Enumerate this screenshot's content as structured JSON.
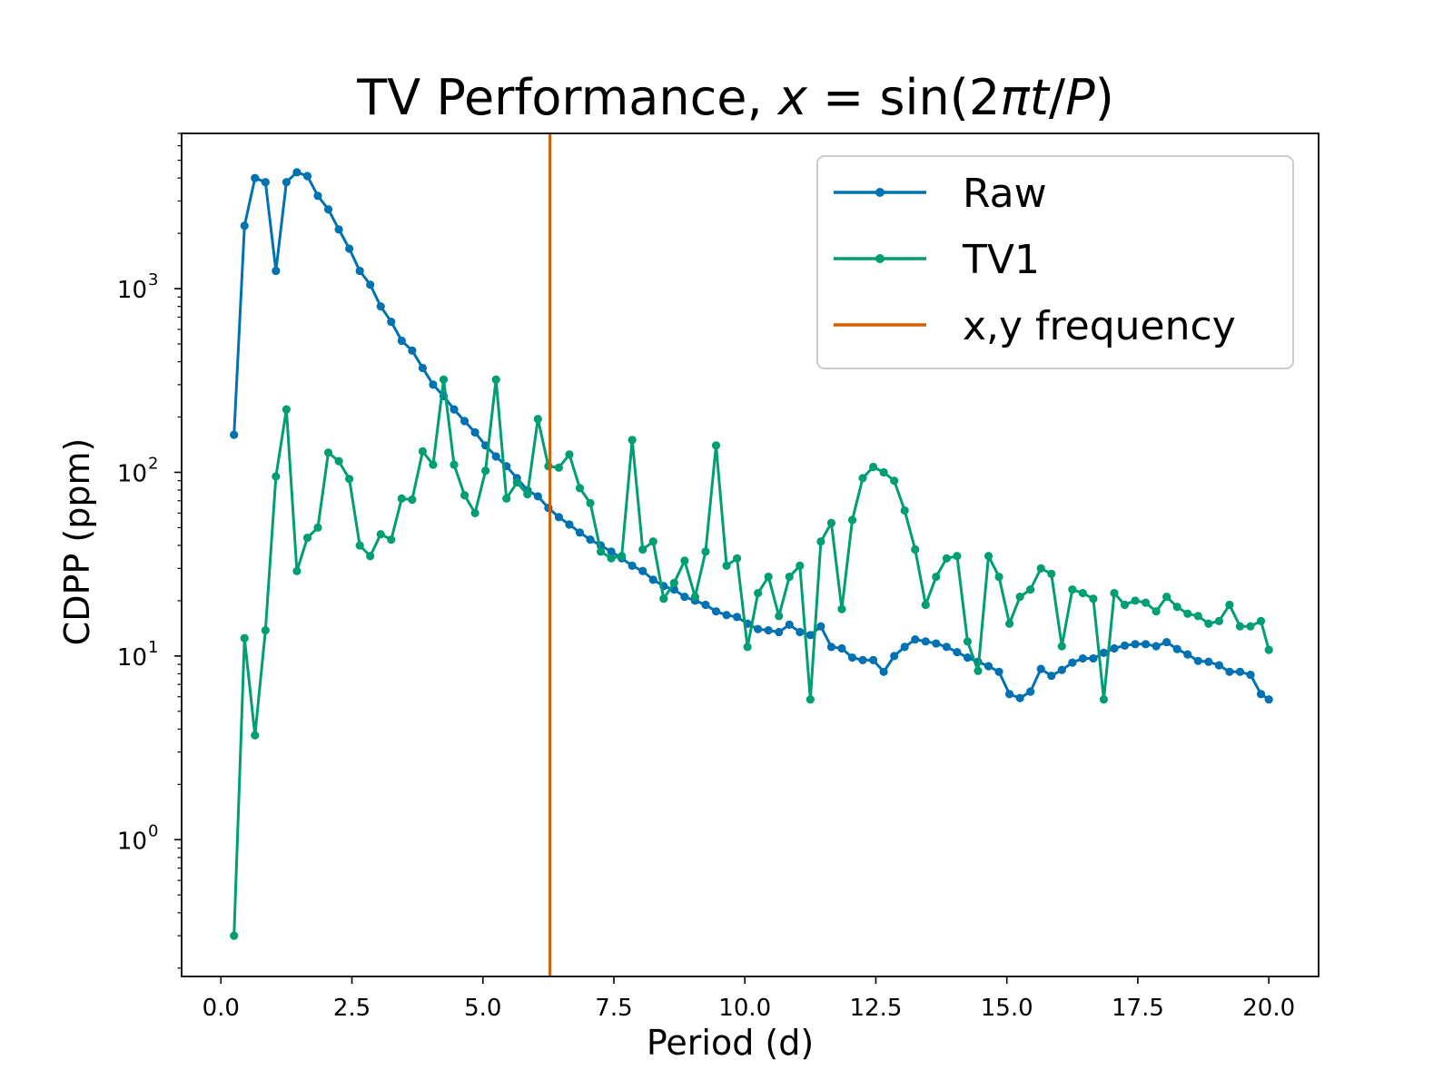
{
  "chart_data": {
    "type": "line",
    "title": {
      "prefix": "TV Performance, ",
      "var_x": "x",
      "equals": " = ",
      "func": "sin(2",
      "pi": "π",
      "var_t": "t",
      "slash": "/",
      "var_p": "P",
      "close": ")"
    },
    "xlabel": "Period (d)",
    "ylabel": "CDPP (ppm)",
    "xlim": [
      -0.75,
      20.95
    ],
    "ylim": [
      0.18,
      7000
    ],
    "yscale": "log",
    "xticks": [
      0.0,
      2.5,
      5.0,
      7.5,
      10.0,
      12.5,
      15.0,
      17.5,
      20.0
    ],
    "xtick_labels": [
      "0.0",
      "2.5",
      "5.0",
      "7.5",
      "10.0",
      "12.5",
      "15.0",
      "17.5",
      "20.0"
    ],
    "yticks": [
      1,
      10,
      100,
      1000
    ],
    "ytick_labels": [
      {
        "base": "10",
        "exp": "0"
      },
      {
        "base": "10",
        "exp": "1"
      },
      {
        "base": "10",
        "exp": "2"
      },
      {
        "base": "10",
        "exp": "3"
      }
    ],
    "grid": false,
    "legend_position": "upper-right",
    "vline": {
      "name": "x,y frequency",
      "x": 6.28,
      "color": "#d55e00"
    },
    "series": [
      {
        "name": "Raw",
        "color": "#0072b2",
        "x": [
          0.25,
          0.45,
          0.65,
          0.85,
          1.05,
          1.25,
          1.45,
          1.65,
          1.85,
          2.05,
          2.25,
          2.45,
          2.65,
          2.85,
          3.05,
          3.25,
          3.45,
          3.65,
          3.85,
          4.05,
          4.25,
          4.45,
          4.65,
          4.85,
          5.05,
          5.25,
          5.45,
          5.65,
          5.85,
          6.05,
          6.25,
          6.45,
          6.65,
          6.85,
          7.05,
          7.25,
          7.45,
          7.65,
          7.85,
          8.05,
          8.25,
          8.45,
          8.65,
          8.85,
          9.05,
          9.25,
          9.45,
          9.65,
          9.85,
          10.05,
          10.25,
          10.45,
          10.65,
          10.85,
          11.05,
          11.25,
          11.45,
          11.65,
          11.85,
          12.05,
          12.25,
          12.45,
          12.65,
          12.85,
          13.05,
          13.25,
          13.45,
          13.65,
          13.85,
          14.05,
          14.25,
          14.45,
          14.65,
          14.85,
          15.05,
          15.25,
          15.45,
          15.65,
          15.85,
          16.05,
          16.25,
          16.45,
          16.65,
          16.85,
          17.05,
          17.25,
          17.45,
          17.65,
          17.85,
          18.05,
          18.25,
          18.45,
          18.65,
          18.85,
          19.05,
          19.25,
          19.45,
          19.65,
          19.85,
          20.0
        ],
        "y": [
          160,
          2200,
          4000,
          3800,
          1250,
          3800,
          4300,
          4100,
          3200,
          2700,
          2100,
          1650,
          1250,
          1050,
          800,
          660,
          520,
          460,
          370,
          300,
          260,
          220,
          190,
          165,
          140,
          122,
          108,
          93,
          80,
          74,
          64,
          57,
          52,
          47,
          43,
          40,
          37,
          34,
          31,
          29,
          26,
          24,
          23,
          21,
          20,
          19,
          17.5,
          16.7,
          16.3,
          15.0,
          14.0,
          13.8,
          13.5,
          14.8,
          13.5,
          13.0,
          14.5,
          11.2,
          11.0,
          9.8,
          9.5,
          9.5,
          8.2,
          10.0,
          11.2,
          12.3,
          12.0,
          11.7,
          11.2,
          10.5,
          9.8,
          9.3,
          8.8,
          8.2,
          6.2,
          5.9,
          6.4,
          8.5,
          7.8,
          8.4,
          9.2,
          9.7,
          9.7,
          10.4,
          11.0,
          11.4,
          11.6,
          11.6,
          11.3,
          11.9,
          10.9,
          10.2,
          9.4,
          9.3,
          8.9,
          8.2,
          8.2,
          7.9,
          6.2,
          5.8
        ]
      },
      {
        "name": "TV1",
        "color": "#009e73",
        "x": [
          0.25,
          0.45,
          0.65,
          0.85,
          1.05,
          1.25,
          1.45,
          1.65,
          1.85,
          2.05,
          2.25,
          2.45,
          2.65,
          2.85,
          3.05,
          3.25,
          3.45,
          3.65,
          3.85,
          4.05,
          4.25,
          4.45,
          4.65,
          4.85,
          5.05,
          5.25,
          5.45,
          5.65,
          5.85,
          6.05,
          6.25,
          6.45,
          6.65,
          6.85,
          7.05,
          7.25,
          7.45,
          7.65,
          7.85,
          8.05,
          8.25,
          8.45,
          8.65,
          8.85,
          9.05,
          9.25,
          9.45,
          9.65,
          9.85,
          10.05,
          10.25,
          10.45,
          10.65,
          10.85,
          11.05,
          11.25,
          11.45,
          11.65,
          11.85,
          12.05,
          12.25,
          12.45,
          12.65,
          12.85,
          13.05,
          13.25,
          13.45,
          13.65,
          13.85,
          14.05,
          14.25,
          14.45,
          14.65,
          14.85,
          15.05,
          15.25,
          15.45,
          15.65,
          15.85,
          16.05,
          16.25,
          16.45,
          16.65,
          16.85,
          17.05,
          17.25,
          17.45,
          17.65,
          17.85,
          18.05,
          18.25,
          18.45,
          18.65,
          18.85,
          19.05,
          19.25,
          19.45,
          19.65,
          19.85,
          20.0
        ],
        "y": [
          0.3,
          12.5,
          3.7,
          13.8,
          95,
          220,
          29,
          44,
          50,
          128,
          115,
          92,
          40,
          35,
          46,
          43,
          72,
          71,
          130,
          110,
          320,
          110,
          75,
          60,
          102,
          320,
          72,
          88,
          76,
          195,
          108,
          106,
          125,
          82,
          68,
          37,
          34,
          35,
          150,
          38,
          42,
          20.5,
          25,
          33,
          21,
          37,
          140,
          31,
          34,
          11.2,
          22,
          27,
          16.5,
          27,
          31,
          5.8,
          42,
          53,
          18,
          55,
          93,
          107,
          100,
          90,
          62,
          38,
          19,
          27,
          34,
          35,
          12,
          8.3,
          35,
          27,
          15,
          21,
          23,
          30,
          28,
          11.3,
          23,
          22,
          20.5,
          5.8,
          22,
          19,
          20,
          19.5,
          17.5,
          21,
          18.5,
          17,
          16.5,
          15,
          15.5,
          19,
          14.5,
          14.5,
          15.5,
          10.8
        ]
      }
    ]
  }
}
